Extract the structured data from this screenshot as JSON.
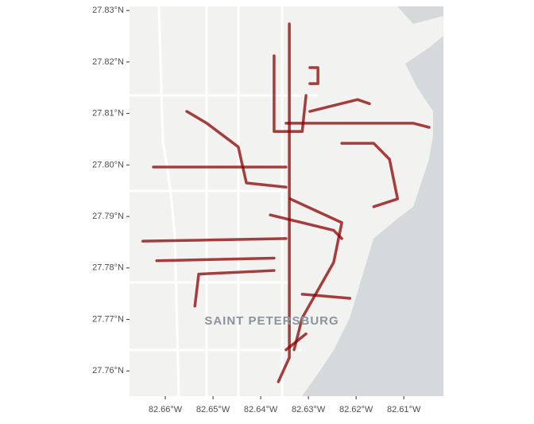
{
  "map": {
    "place_label": "SAINT PETERSBURG",
    "xlim": [
      -82.6675,
      -82.6017
    ],
    "ylim": [
      27.7551,
      27.8308
    ],
    "xticks": [
      {
        "value": -82.66,
        "label": "82.66°W"
      },
      {
        "value": -82.65,
        "label": "82.65°W"
      },
      {
        "value": -82.64,
        "label": "82.64°W"
      },
      {
        "value": -82.63,
        "label": "82.63°W"
      },
      {
        "value": -82.62,
        "label": "82.62°W"
      },
      {
        "value": -82.61,
        "label": "82.61°W"
      }
    ],
    "yticks": [
      {
        "value": 27.76,
        "label": "27.76°N"
      },
      {
        "value": 27.77,
        "label": "27.77°N"
      },
      {
        "value": 27.78,
        "label": "27.78°N"
      },
      {
        "value": 27.79,
        "label": "27.79°N"
      },
      {
        "value": 27.8,
        "label": "27.80°N"
      },
      {
        "value": 27.81,
        "label": "27.81°N"
      },
      {
        "value": 27.82,
        "label": "27.82°N"
      },
      {
        "value": 27.83,
        "label": "27.83°N"
      }
    ],
    "track_color": "#8b0000",
    "tracks": [
      {
        "lon": [
          -82.634,
          -82.634,
          -82.6363
        ],
        "lat": [
          27.8274,
          27.7626,
          27.7579
        ]
      },
      {
        "lon": [
          -82.6625,
          -82.6347
        ],
        "lat": [
          27.7996,
          27.7996
        ]
      },
      {
        "lon": [
          -82.6647,
          -82.6347
        ],
        "lat": [
          27.7852,
          27.7857
        ]
      },
      {
        "lon": [
          -82.6618,
          -82.6372
        ],
        "lat": [
          27.7814,
          27.7819
        ]
      },
      {
        "lon": [
          -82.6538,
          -82.653,
          -82.6372
        ],
        "lat": [
          27.7726,
          27.7788,
          27.7795
        ]
      },
      {
        "lon": [
          -82.6347,
          -82.608,
          -82.6047
        ],
        "lat": [
          27.8081,
          27.8081,
          27.8073
        ]
      },
      {
        "lon": [
          -82.6338,
          -82.623,
          -82.6247,
          -82.6313,
          -82.633
        ],
        "lat": [
          27.7934,
          27.7888,
          27.7811,
          27.7703,
          27.7641
        ]
      },
      {
        "lon": [
          -82.6555,
          -82.6513,
          -82.6447,
          -82.643,
          -82.6347
        ],
        "lat": [
          27.8104,
          27.8081,
          27.8035,
          27.7965,
          27.7957
        ]
      },
      {
        "lon": [
          -82.6372,
          -82.6372,
          -82.6313,
          -82.6305
        ],
        "lat": [
          27.8212,
          27.8065,
          27.8065,
          27.8135
        ]
      },
      {
        "lon": [
          -82.6297,
          -82.628,
          -82.628,
          -82.6297
        ],
        "lat": [
          27.8189,
          27.8189,
          27.8158,
          27.8158
        ]
      },
      {
        "lon": [
          -82.623,
          -82.6163,
          -82.613,
          -82.6113,
          -82.6163
        ],
        "lat": [
          27.8042,
          27.8042,
          27.8011,
          27.7934,
          27.7919
        ]
      },
      {
        "lon": [
          -82.638,
          -82.6247,
          -82.623
        ],
        "lat": [
          27.7903,
          27.7873,
          27.7857
        ]
      },
      {
        "lon": [
          -82.6313,
          -82.6213
        ],
        "lat": [
          27.7749,
          27.7741
        ]
      },
      {
        "lon": [
          -82.6305,
          -82.6347
        ],
        "lat": [
          27.7672,
          27.7641
        ]
      },
      {
        "lon": [
          -82.6297,
          -82.6197,
          -82.6172
        ],
        "lat": [
          27.8104,
          27.8127,
          27.8119
        ]
      }
    ]
  }
}
